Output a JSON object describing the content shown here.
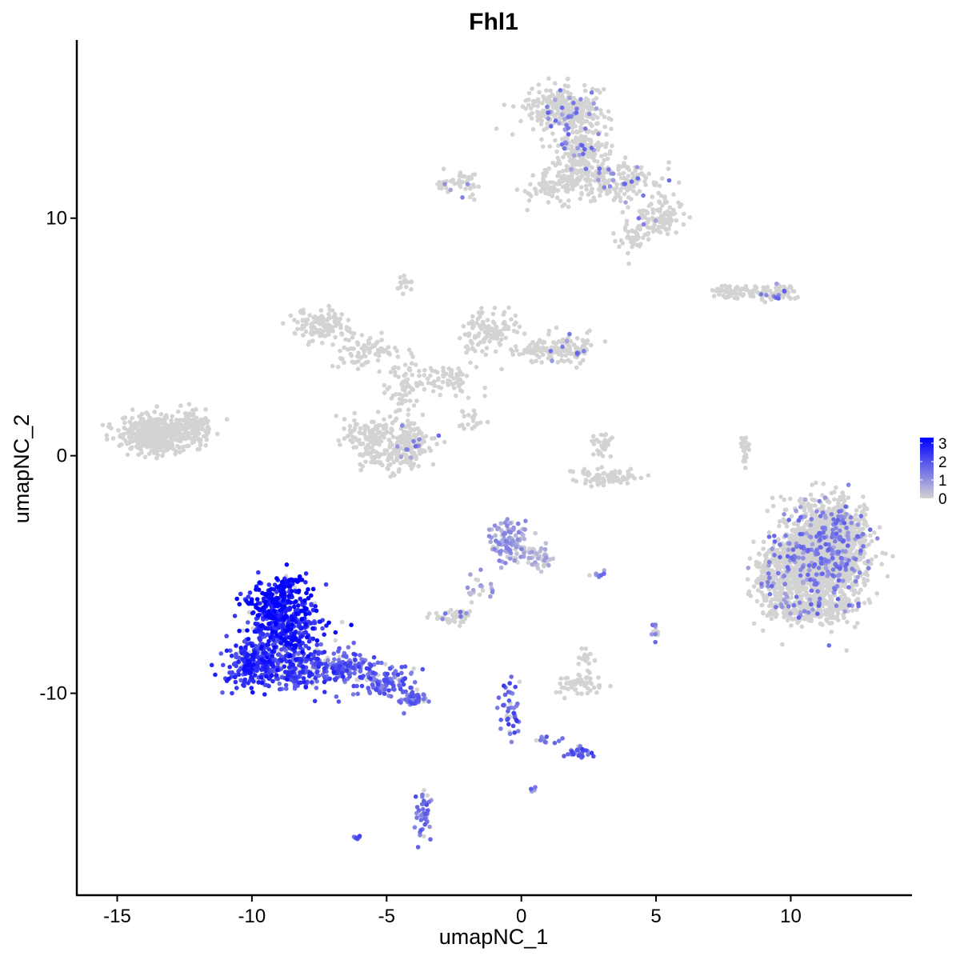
{
  "chart_data": {
    "type": "scatter",
    "title": "Fhl1",
    "xlabel": "umapNC_1",
    "ylabel": "umapNC_2",
    "xlim": [
      -16.5,
      14.5
    ],
    "ylim": [
      -18.5,
      17.5
    ],
    "xticks": [
      -15,
      -10,
      -5,
      0,
      5,
      10
    ],
    "xtick_labels": [
      "-15",
      "-10",
      "-5",
      "0",
      "5",
      "10"
    ],
    "yticks": [
      -10,
      0,
      10
    ],
    "ytick_labels": [
      "-10",
      "0",
      "10"
    ],
    "grid": false,
    "legend": {
      "position": "right",
      "type": "colorbar",
      "labels": [
        "3",
        "2",
        "1",
        "0"
      ],
      "values": [
        3,
        2,
        1,
        0
      ],
      "min": 0,
      "max": 3.3,
      "low_color": "#d3d3d3",
      "high_color": "#0000ff"
    },
    "colors": {
      "low": "#d3d3d3",
      "high": "#0000ff"
    },
    "clusters": [
      {
        "cx": 11.1,
        "cy": -4.3,
        "sx": 1.0,
        "sy": 1.35,
        "n": 1600,
        "expr": 0.03
      },
      {
        "cx": 11.8,
        "cy": -3.5,
        "sx": 0.6,
        "sy": 1.1,
        "n": 400,
        "expr": 0.03
      },
      {
        "cx": 9.5,
        "cy": -5.0,
        "sx": 0.55,
        "sy": 0.7,
        "n": 200,
        "expr": 0.02
      },
      {
        "cx": 10.5,
        "cy": -6.5,
        "sx": 0.9,
        "sy": 0.35,
        "n": 200,
        "expr": 0.02
      },
      {
        "cx": -13.6,
        "cy": 0.9,
        "sx": 0.75,
        "sy": 0.45,
        "n": 480,
        "expr": 0.0
      },
      {
        "cx": -12.2,
        "cy": 1.2,
        "sx": 0.6,
        "sy": 0.5,
        "n": 120,
        "expr": 0.0
      },
      {
        "cx": 1.6,
        "cy": 14.6,
        "sx": 0.9,
        "sy": 0.6,
        "n": 320,
        "expr": 0.02
      },
      {
        "cx": 2.2,
        "cy": 12.6,
        "sx": 0.65,
        "sy": 1.0,
        "n": 260,
        "expr": 0.02
      },
      {
        "cx": 3.8,
        "cy": 11.5,
        "sx": 0.9,
        "sy": 0.6,
        "n": 150,
        "expr": 0.02
      },
      {
        "cx": 5.2,
        "cy": 10.0,
        "sx": 0.55,
        "sy": 0.45,
        "n": 100,
        "expr": 0.02
      },
      {
        "cx": 1.2,
        "cy": 11.3,
        "sx": 0.7,
        "sy": 0.4,
        "n": 70,
        "expr": 0.0
      },
      {
        "cx": -2.3,
        "cy": 11.5,
        "sx": 0.55,
        "sy": 0.3,
        "n": 45,
        "expr": 0.03
      },
      {
        "cx": 4.1,
        "cy": 9.2,
        "sx": 0.4,
        "sy": 0.4,
        "n": 40,
        "expr": 0.0
      },
      {
        "cx": -7.5,
        "cy": 5.5,
        "sx": 0.65,
        "sy": 0.45,
        "n": 120,
        "expr": 0.0
      },
      {
        "cx": -5.7,
        "cy": 4.4,
        "sx": 0.75,
        "sy": 0.45,
        "n": 80,
        "expr": 0.0
      },
      {
        "cx": -4.4,
        "cy": 2.8,
        "sx": 0.4,
        "sy": 0.8,
        "n": 60,
        "expr": 0.0
      },
      {
        "cx": -5.6,
        "cy": 0.8,
        "sx": 0.6,
        "sy": 0.55,
        "n": 130,
        "expr": 0.0
      },
      {
        "cx": -4.1,
        "cy": 0.6,
        "sx": 0.5,
        "sy": 0.55,
        "n": 130,
        "expr": 0.02
      },
      {
        "cx": -4.8,
        "cy": -0.2,
        "sx": 0.7,
        "sy": 0.35,
        "n": 60,
        "expr": 0.0
      },
      {
        "cx": -2.8,
        "cy": 3.3,
        "sx": 0.8,
        "sy": 0.4,
        "n": 70,
        "expr": 0.0
      },
      {
        "cx": -1.6,
        "cy": 5.2,
        "sx": 0.35,
        "sy": 0.55,
        "n": 60,
        "expr": 0.0
      },
      {
        "cx": -0.7,
        "cy": 5.4,
        "sx": 0.4,
        "sy": 0.5,
        "n": 50,
        "expr": 0.0
      },
      {
        "cx": 1.6,
        "cy": 4.5,
        "sx": 0.65,
        "sy": 0.4,
        "n": 100,
        "expr": 0.02
      },
      {
        "cx": 0.6,
        "cy": 4.4,
        "sx": 0.5,
        "sy": 0.3,
        "n": 40,
        "expr": 0.0
      },
      {
        "cx": -1.8,
        "cy": 1.5,
        "sx": 0.3,
        "sy": 0.3,
        "n": 20,
        "expr": 0.0
      },
      {
        "cx": -4.3,
        "cy": 7.3,
        "sx": 0.2,
        "sy": 0.25,
        "n": 15,
        "expr": 0.0
      },
      {
        "cx": 3.2,
        "cy": -0.9,
        "sx": 0.75,
        "sy": 0.2,
        "n": 80,
        "expr": 0.0
      },
      {
        "cx": 3.0,
        "cy": 0.5,
        "sx": 0.25,
        "sy": 0.4,
        "n": 30,
        "expr": 0.0
      },
      {
        "cx": 8.3,
        "cy": 0.3,
        "sx": 0.12,
        "sy": 0.55,
        "n": 30,
        "expr": 0.0
      },
      {
        "cx": 7.9,
        "cy": 6.9,
        "sx": 0.6,
        "sy": 0.2,
        "n": 70,
        "expr": 0.0
      },
      {
        "cx": 9.5,
        "cy": 6.9,
        "sx": 0.5,
        "sy": 0.2,
        "n": 60,
        "expr": 0.03
      },
      {
        "cx": -0.5,
        "cy": -3.6,
        "sx": 0.45,
        "sy": 0.55,
        "n": 110,
        "expr": 0.22
      },
      {
        "cx": 0.6,
        "cy": -4.3,
        "sx": 0.35,
        "sy": 0.35,
        "n": 50,
        "expr": 0.1
      },
      {
        "cx": -2.6,
        "cy": -6.8,
        "sx": 0.45,
        "sy": 0.2,
        "n": 50,
        "expr": 0.04
      },
      {
        "cx": -1.5,
        "cy": -5.6,
        "sx": 0.4,
        "sy": 0.4,
        "n": 20,
        "expr": 0.2
      },
      {
        "cx": 2.1,
        "cy": -9.6,
        "sx": 0.5,
        "sy": 0.3,
        "n": 60,
        "expr": 0.0
      },
      {
        "cx": 2.4,
        "cy": -8.5,
        "sx": 0.2,
        "sy": 0.3,
        "n": 15,
        "expr": 0.0
      },
      {
        "cx": -0.4,
        "cy": -10.8,
        "sx": 0.25,
        "sy": 0.9,
        "n": 45,
        "expr": 0.55
      },
      {
        "cx": 2.2,
        "cy": -12.5,
        "sx": 0.35,
        "sy": 0.2,
        "n": 25,
        "expr": 0.55
      },
      {
        "cx": 1.0,
        "cy": -12.0,
        "sx": 0.35,
        "sy": 0.15,
        "n": 10,
        "expr": 0.45
      },
      {
        "cx": -3.6,
        "cy": -15.1,
        "sx": 0.2,
        "sy": 0.55,
        "n": 45,
        "expr": 0.45
      },
      {
        "cx": 5.0,
        "cy": -7.3,
        "sx": 0.15,
        "sy": 0.25,
        "n": 12,
        "expr": 0.35
      },
      {
        "cx": 2.8,
        "cy": -5.0,
        "sx": 0.2,
        "sy": 0.1,
        "n": 8,
        "expr": 0.35
      },
      {
        "cx": -6.1,
        "cy": -16.1,
        "sx": 0.1,
        "sy": 0.08,
        "n": 6,
        "expr": 0.5
      },
      {
        "cx": 0.55,
        "cy": -14.0,
        "sx": 0.08,
        "sy": 0.08,
        "n": 4,
        "expr": 0.4
      },
      {
        "cx": -9.0,
        "cy": -6.1,
        "sx": 0.8,
        "sy": 0.6,
        "n": 220,
        "expr": 0.9
      },
      {
        "cx": -8.7,
        "cy": -7.4,
        "sx": 0.9,
        "sy": 0.7,
        "n": 300,
        "expr": 0.8
      },
      {
        "cx": -9.9,
        "cy": -8.8,
        "sx": 0.6,
        "sy": 0.6,
        "n": 260,
        "expr": 0.75
      },
      {
        "cx": -8.2,
        "cy": -9.0,
        "sx": 0.8,
        "sy": 0.55,
        "n": 200,
        "expr": 0.65
      },
      {
        "cx": -6.4,
        "cy": -8.9,
        "sx": 0.8,
        "sy": 0.5,
        "n": 130,
        "expr": 0.55
      },
      {
        "cx": -4.9,
        "cy": -9.6,
        "sx": 0.6,
        "sy": 0.4,
        "n": 90,
        "expr": 0.5
      },
      {
        "cx": -4.0,
        "cy": -10.2,
        "sx": 0.3,
        "sy": 0.25,
        "n": 50,
        "expr": 0.45
      },
      {
        "cx": -8.7,
        "cy": -5.3,
        "sx": 0.3,
        "sy": 0.15,
        "n": 25,
        "expr": 0.95
      }
    ]
  }
}
